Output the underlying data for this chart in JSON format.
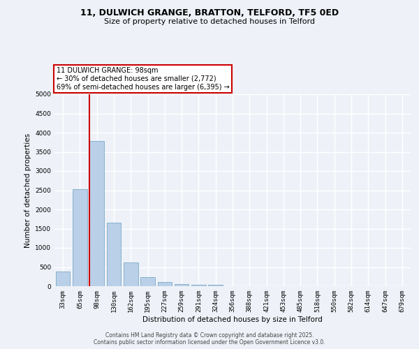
{
  "title_line1": "11, DULWICH GRANGE, BRATTON, TELFORD, TF5 0ED",
  "title_line2": "Size of property relative to detached houses in Telford",
  "xlabel": "Distribution of detached houses by size in Telford",
  "ylabel": "Number of detached properties",
  "categories": [
    "33sqm",
    "65sqm",
    "98sqm",
    "130sqm",
    "162sqm",
    "195sqm",
    "227sqm",
    "259sqm",
    "291sqm",
    "324sqm",
    "356sqm",
    "388sqm",
    "421sqm",
    "453sqm",
    "485sqm",
    "518sqm",
    "550sqm",
    "582sqm",
    "614sqm",
    "647sqm",
    "679sqm"
  ],
  "values": [
    390,
    2530,
    3780,
    1660,
    610,
    240,
    110,
    55,
    30,
    35,
    0,
    0,
    0,
    0,
    0,
    0,
    0,
    0,
    0,
    0,
    0
  ],
  "bar_color": "#bad0e8",
  "bar_edge_color": "#6a9ec0",
  "highlight_line_index": 2,
  "highlight_line_color": "#cc0000",
  "annotation_text": "11 DULWICH GRANGE: 98sqm\n← 30% of detached houses are smaller (2,772)\n69% of semi-detached houses are larger (6,395) →",
  "annotation_box_color": "#cc0000",
  "ylim": [
    0,
    5000
  ],
  "yticks": [
    0,
    500,
    1000,
    1500,
    2000,
    2500,
    3000,
    3500,
    4000,
    4500,
    5000
  ],
  "background_color": "#eef2f8",
  "grid_color": "#ffffff",
  "footer_line1": "Contains HM Land Registry data © Crown copyright and database right 2025.",
  "footer_line2": "Contains public sector information licensed under the Open Government Licence v3.0."
}
